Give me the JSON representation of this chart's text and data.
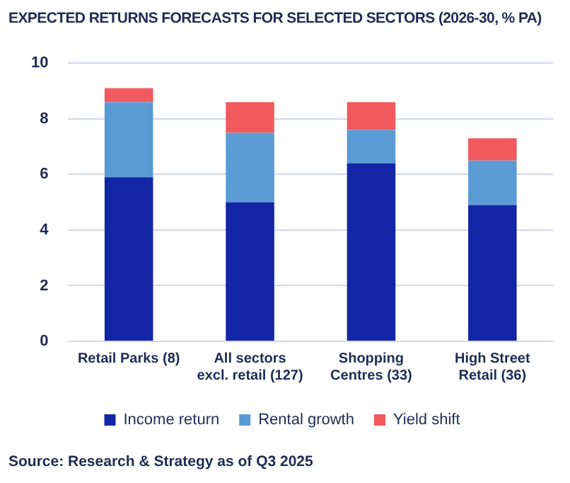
{
  "chart_data": {
    "type": "bar",
    "title": "EXPECTED RETURNS FORECASTS FOR SELECTED SECTORS (2026-30, % PA)",
    "categories": [
      "Retail Parks (8)",
      "All sectors excl. retail (127)",
      "Shopping Centres (33)",
      "High Street Retail (36)"
    ],
    "series": [
      {
        "name": "Income return",
        "color": "#1226a6",
        "values": [
          5.9,
          5.0,
          6.4,
          4.9
        ]
      },
      {
        "name": "Rental growth",
        "color": "#5b9bd5",
        "values": [
          2.7,
          2.5,
          1.2,
          1.6
        ]
      },
      {
        "name": "Yield shift",
        "color": "#f05a5e",
        "values": [
          0.5,
          1.1,
          1.0,
          0.8
        ]
      }
    ],
    "stacked": true,
    "ylim": [
      0,
      10
    ],
    "yticks": [
      0,
      2,
      4,
      6,
      8,
      10
    ],
    "grid": "y",
    "legend": "bottom",
    "annotations": [
      "Source: Research & Strategy as of Q3 2025"
    ]
  }
}
